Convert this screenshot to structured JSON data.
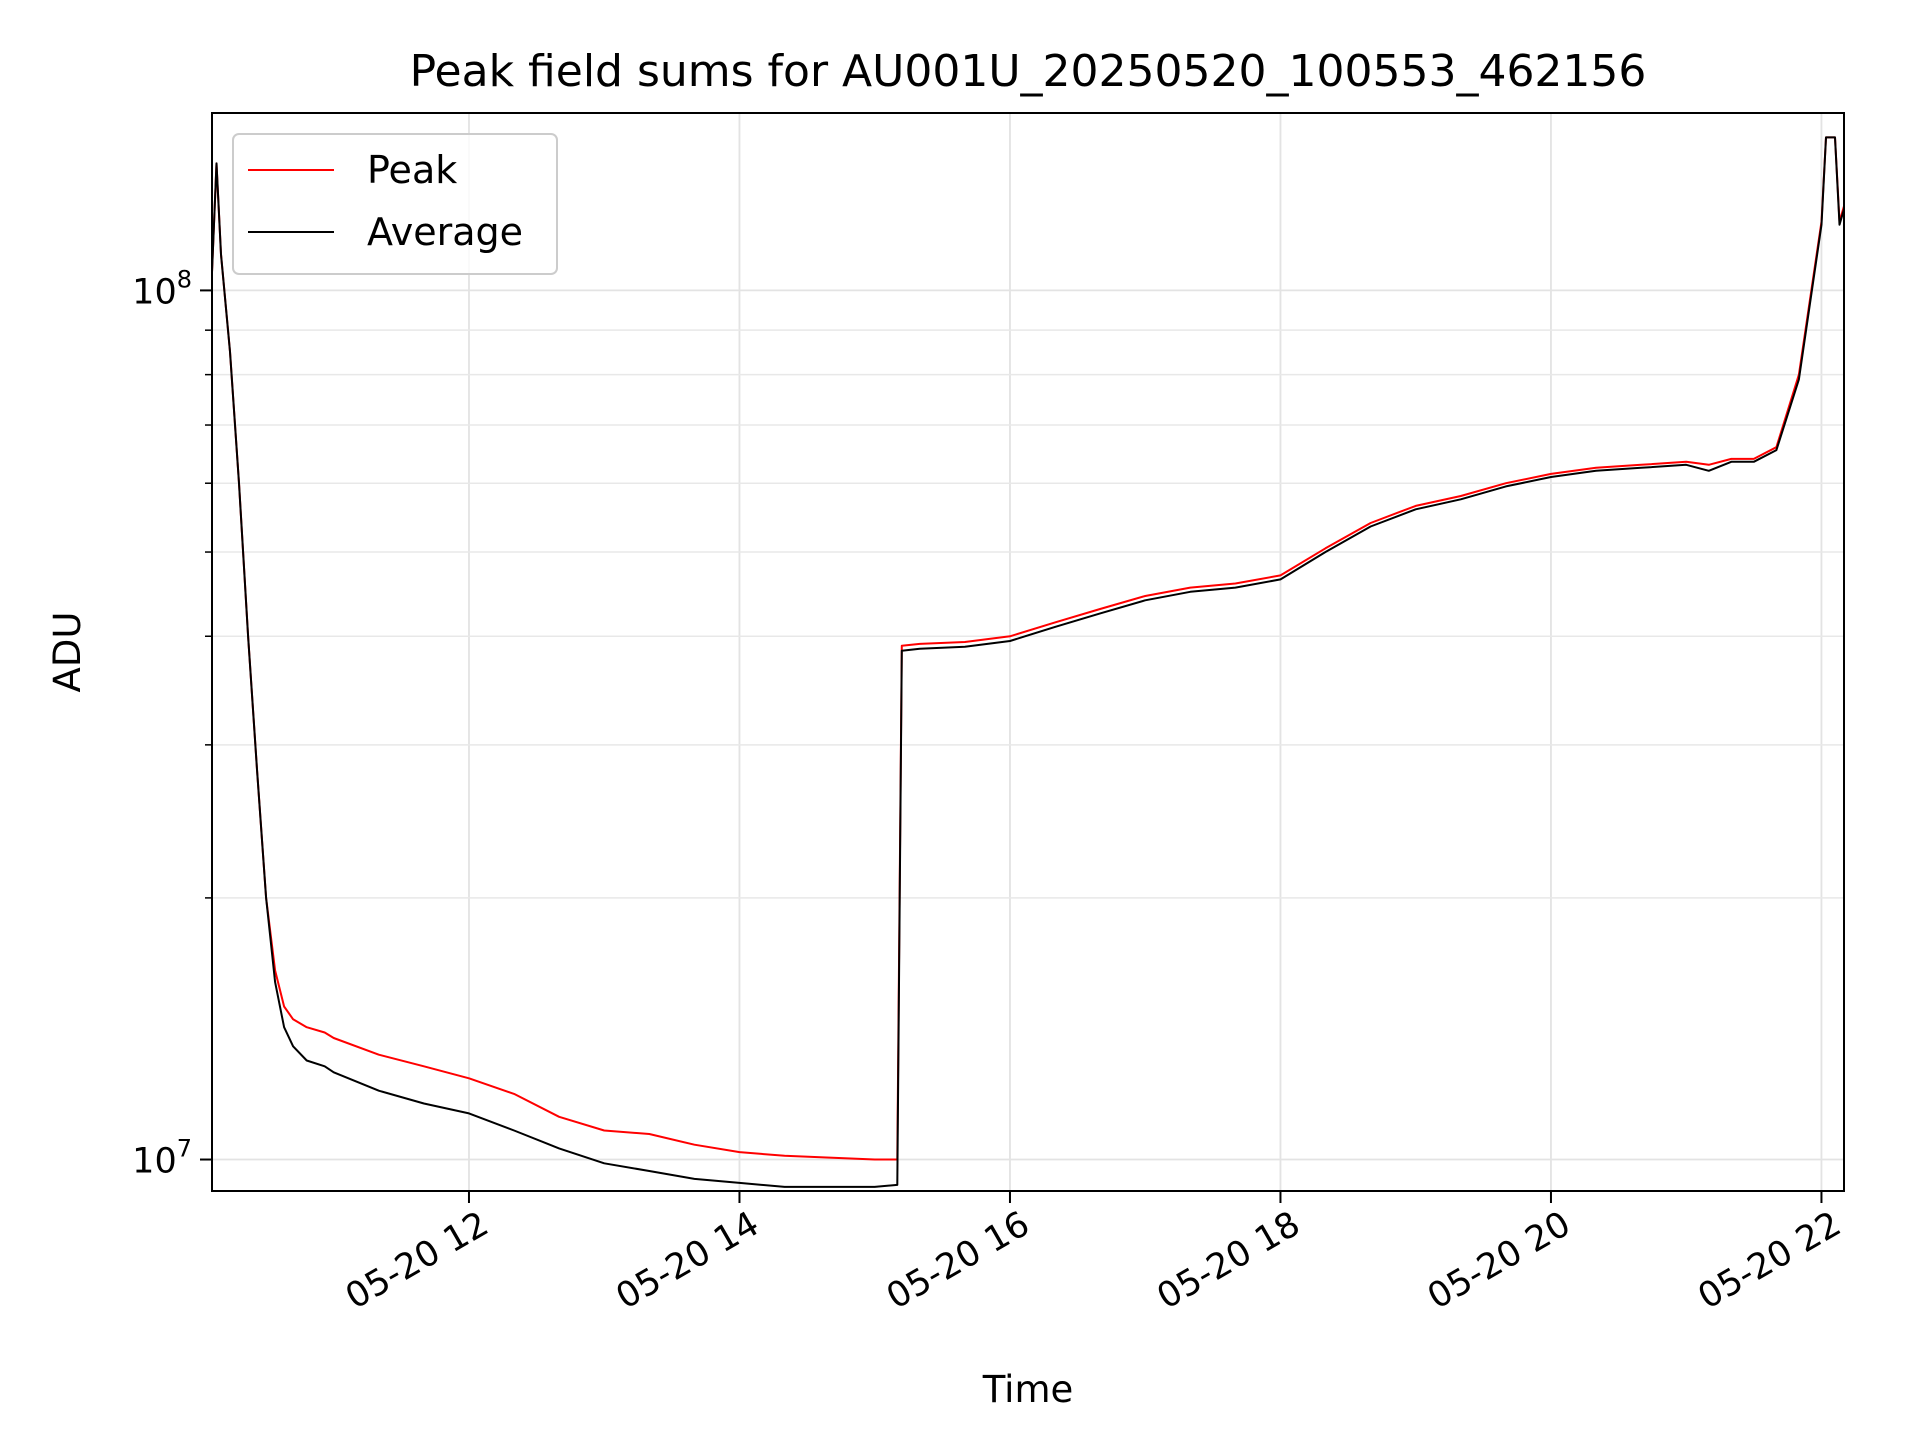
{
  "chart_data": {
    "type": "line",
    "title": "Peak field sums for AU001U_20250520_100553_462156",
    "xlabel": "Time",
    "ylabel": "ADU",
    "y_scale": "log",
    "ylim": [
      9200000,
      160000000
    ],
    "xlim": [
      "05-20 10:06",
      "05-20 22:10"
    ],
    "x_ticks": [
      "05-20 12",
      "05-20 14",
      "05-20 16",
      "05-20 18",
      "05-20 20",
      "05-20 22"
    ],
    "y_ticks": [
      {
        "base": "10",
        "exp": "7"
      },
      {
        "base": "10",
        "exp": "8"
      }
    ],
    "grid": true,
    "legend_position": "top-left",
    "colors": {
      "Peak": "#ff0000",
      "Average": "#000000"
    },
    "series": [
      {
        "name": "Peak",
        "x": [
          "05-20 10:06",
          "05-20 10:08",
          "05-20 10:10",
          "05-20 10:14",
          "05-20 10:18",
          "05-20 10:22",
          "05-20 10:26",
          "05-20 10:30",
          "05-20 10:34",
          "05-20 10:38",
          "05-20 10:42",
          "05-20 10:48",
          "05-20 10:56",
          "05-20 11:00",
          "05-20 11:20",
          "05-20 11:40",
          "05-20 12:00",
          "05-20 12:20",
          "05-20 12:40",
          "05-20 13:00",
          "05-20 13:20",
          "05-20 13:40",
          "05-20 14:00",
          "05-20 14:20",
          "05-20 14:40",
          "05-20 15:00",
          "05-20 15:10",
          "05-20 15:12",
          "05-20 15:20",
          "05-20 15:40",
          "05-20 16:00",
          "05-20 16:20",
          "05-20 16:40",
          "05-20 17:00",
          "05-20 17:20",
          "05-20 17:40",
          "05-20 18:00",
          "05-20 18:20",
          "05-20 18:40",
          "05-20 19:00",
          "05-20 19:20",
          "05-20 19:40",
          "05-20 20:00",
          "05-20 20:20",
          "05-20 20:40",
          "05-20 21:00",
          "05-20 21:10",
          "05-20 21:20",
          "05-20 21:30",
          "05-20 21:40",
          "05-20 21:50",
          "05-20 22:00",
          "05-20 22:02",
          "05-20 22:04",
          "05-20 22:06",
          "05-20 22:08",
          "05-20 22:10"
        ],
        "values": [
          105000000,
          140000000,
          110000000,
          85000000,
          60000000,
          40000000,
          28000000,
          20000000,
          16500000,
          15000000,
          14500000,
          14200000,
          14000000,
          13800000,
          13200000,
          12800000,
          12400000,
          11900000,
          11200000,
          10800000,
          10700000,
          10400000,
          10200000,
          10100000,
          10050000,
          10000000,
          10000000,
          39000000,
          39200000,
          39400000,
          40000000,
          41500000,
          43000000,
          44500000,
          45500000,
          46000000,
          47000000,
          50500000,
          54000000,
          56500000,
          58000000,
          60000000,
          61500000,
          62500000,
          63000000,
          63500000,
          63000000,
          64000000,
          64000000,
          66000000,
          80000000,
          120000000,
          150000000,
          150000000,
          150000000,
          120000000,
          125000000
        ]
      },
      {
        "name": "Average",
        "x": [
          "05-20 10:06",
          "05-20 10:08",
          "05-20 10:10",
          "05-20 10:14",
          "05-20 10:18",
          "05-20 10:22",
          "05-20 10:26",
          "05-20 10:30",
          "05-20 10:34",
          "05-20 10:38",
          "05-20 10:42",
          "05-20 10:48",
          "05-20 10:56",
          "05-20 11:00",
          "05-20 11:20",
          "05-20 11:40",
          "05-20 12:00",
          "05-20 12:20",
          "05-20 12:40",
          "05-20 13:00",
          "05-20 13:20",
          "05-20 13:40",
          "05-20 14:00",
          "05-20 14:20",
          "05-20 14:40",
          "05-20 15:00",
          "05-20 15:10",
          "05-20 15:12",
          "05-20 15:20",
          "05-20 15:40",
          "05-20 16:00",
          "05-20 16:20",
          "05-20 16:40",
          "05-20 17:00",
          "05-20 17:20",
          "05-20 17:40",
          "05-20 18:00",
          "05-20 18:20",
          "05-20 18:40",
          "05-20 19:00",
          "05-20 19:20",
          "05-20 19:40",
          "05-20 20:00",
          "05-20 20:20",
          "05-20 20:40",
          "05-20 21:00",
          "05-20 21:10",
          "05-20 21:20",
          "05-20 21:30",
          "05-20 21:40",
          "05-20 21:50",
          "05-20 22:00",
          "05-20 22:02",
          "05-20 22:04",
          "05-20 22:06",
          "05-20 22:08",
          "05-20 22:10"
        ],
        "values": [
          105000000,
          140000000,
          110000000,
          85000000,
          60000000,
          40000000,
          28000000,
          20000000,
          16000000,
          14200000,
          13500000,
          13000000,
          12800000,
          12600000,
          12000000,
          11600000,
          11300000,
          10800000,
          10300000,
          9900000,
          9700000,
          9500000,
          9400000,
          9300000,
          9300000,
          9300000,
          9350000,
          38500000,
          38700000,
          38900000,
          39500000,
          41000000,
          42500000,
          44000000,
          45000000,
          45500000,
          46500000,
          50000000,
          53500000,
          56000000,
          57500000,
          59500000,
          61000000,
          62000000,
          62500000,
          63000000,
          62000000,
          63500000,
          63500000,
          65500000,
          79000000,
          119000000,
          150000000,
          150000000,
          150000000,
          119000000,
          124000000
        ]
      }
    ]
  }
}
